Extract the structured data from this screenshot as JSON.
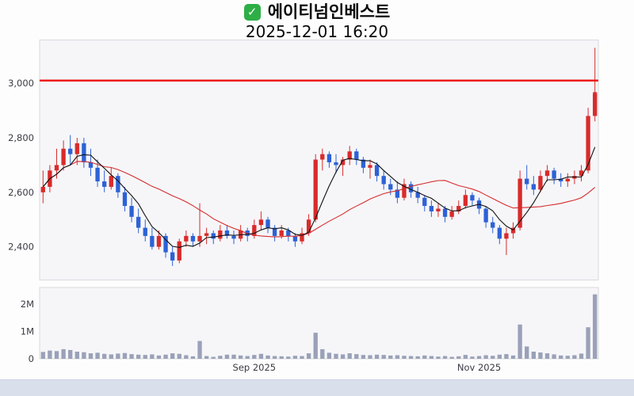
{
  "header": {
    "check_glyph": "✓",
    "title": "에이티넘인베스트",
    "datetime": "2025-12-01 16:20"
  },
  "chart_data": {
    "type": "candlestick",
    "title": "에이티넘인베스트",
    "subtitle": "2025-12-01 16:20",
    "price_axis": {
      "ticks": [
        2400,
        2600,
        2800,
        3000
      ],
      "labels": [
        "2,400",
        "2,600",
        "2,800",
        "3,000"
      ],
      "range": [
        2280,
        3160
      ]
    },
    "volume_axis": {
      "ticks": [
        0,
        1000000,
        2000000
      ],
      "labels": [
        "0",
        "1M",
        "2M"
      ],
      "range": [
        0,
        2600000
      ]
    },
    "x_axis": {
      "labels": [
        {
          "text": "Sep 2025",
          "index": 31
        },
        {
          "text": "Nov 2025",
          "index": 64
        }
      ]
    },
    "hline": {
      "value": 3010,
      "color": "#ee1111"
    },
    "ma_fast": {
      "window": 5,
      "name": "MA5"
    },
    "ma_slow": {
      "window": 20,
      "name": "MA20"
    },
    "colors": {
      "up": "#d92b2b",
      "down": "#2d62d6",
      "ma_fast": "#111111",
      "ma_slow": "#d62c2c",
      "volume": "#9aa1b8",
      "panel_bg": "#f6f6f9",
      "panel_border": "#d9d9e0"
    },
    "candle_format": [
      "open",
      "high",
      "low",
      "close",
      "volume"
    ],
    "candles": [
      [
        2600,
        2680,
        2560,
        2620,
        250000
      ],
      [
        2620,
        2700,
        2600,
        2680,
        300000
      ],
      [
        2680,
        2760,
        2650,
        2700,
        280000
      ],
      [
        2700,
        2790,
        2680,
        2760,
        350000
      ],
      [
        2760,
        2810,
        2700,
        2740,
        320000
      ],
      [
        2740,
        2800,
        2700,
        2780,
        260000
      ],
      [
        2780,
        2800,
        2690,
        2710,
        240000
      ],
      [
        2710,
        2760,
        2660,
        2690,
        200000
      ],
      [
        2690,
        2720,
        2620,
        2640,
        220000
      ],
      [
        2640,
        2680,
        2600,
        2620,
        180000
      ],
      [
        2620,
        2690,
        2610,
        2660,
        160000
      ],
      [
        2660,
        2670,
        2580,
        2600,
        190000
      ],
      [
        2600,
        2620,
        2530,
        2550,
        210000
      ],
      [
        2550,
        2580,
        2490,
        2510,
        170000
      ],
      [
        2510,
        2540,
        2450,
        2470,
        150000
      ],
      [
        2470,
        2500,
        2420,
        2440,
        140000
      ],
      [
        2440,
        2470,
        2390,
        2400,
        160000
      ],
      [
        2400,
        2460,
        2390,
        2440,
        120000
      ],
      [
        2440,
        2450,
        2360,
        2380,
        150000
      ],
      [
        2380,
        2400,
        2330,
        2350,
        200000
      ],
      [
        2350,
        2430,
        2340,
        2420,
        180000
      ],
      [
        2420,
        2460,
        2400,
        2440,
        130000
      ],
      [
        2440,
        2450,
        2400,
        2420,
        90000
      ],
      [
        2420,
        2560,
        2400,
        2440,
        650000
      ],
      [
        2440,
        2470,
        2410,
        2450,
        100000
      ],
      [
        2450,
        2460,
        2410,
        2430,
        70000
      ],
      [
        2430,
        2480,
        2420,
        2460,
        110000
      ],
      [
        2460,
        2480,
        2430,
        2440,
        150000
      ],
      [
        2440,
        2460,
        2410,
        2430,
        150000
      ],
      [
        2430,
        2480,
        2420,
        2460,
        120000
      ],
      [
        2460,
        2470,
        2420,
        2440,
        100000
      ],
      [
        2440,
        2500,
        2430,
        2480,
        140000
      ],
      [
        2480,
        2530,
        2460,
        2500,
        180000
      ],
      [
        2500,
        2510,
        2450,
        2470,
        120000
      ],
      [
        2470,
        2480,
        2420,
        2440,
        100000
      ],
      [
        2440,
        2480,
        2430,
        2460,
        90000
      ],
      [
        2460,
        2470,
        2420,
        2440,
        80000
      ],
      [
        2440,
        2450,
        2400,
        2420,
        110000
      ],
      [
        2420,
        2470,
        2410,
        2450,
        100000
      ],
      [
        2450,
        2520,
        2440,
        2500,
        200000
      ],
      [
        2500,
        2740,
        2490,
        2720,
        950000
      ],
      [
        2720,
        2760,
        2680,
        2740,
        350000
      ],
      [
        2740,
        2750,
        2690,
        2710,
        220000
      ],
      [
        2710,
        2740,
        2670,
        2700,
        180000
      ],
      [
        2700,
        2730,
        2660,
        2720,
        160000
      ],
      [
        2720,
        2770,
        2700,
        2750,
        200000
      ],
      [
        2750,
        2760,
        2700,
        2720,
        170000
      ],
      [
        2720,
        2730,
        2670,
        2690,
        140000
      ],
      [
        2690,
        2720,
        2650,
        2700,
        130000
      ],
      [
        2700,
        2710,
        2640,
        2660,
        150000
      ],
      [
        2660,
        2680,
        2610,
        2630,
        140000
      ],
      [
        2630,
        2650,
        2590,
        2610,
        120000
      ],
      [
        2610,
        2640,
        2560,
        2580,
        130000
      ],
      [
        2580,
        2650,
        2570,
        2630,
        110000
      ],
      [
        2630,
        2640,
        2580,
        2600,
        100000
      ],
      [
        2600,
        2620,
        2560,
        2580,
        90000
      ],
      [
        2580,
        2590,
        2530,
        2550,
        120000
      ],
      [
        2550,
        2570,
        2510,
        2530,
        100000
      ],
      [
        2530,
        2560,
        2510,
        2540,
        80000
      ],
      [
        2540,
        2550,
        2490,
        2510,
        100000
      ],
      [
        2510,
        2550,
        2500,
        2530,
        70000
      ],
      [
        2530,
        2570,
        2520,
        2550,
        90000
      ],
      [
        2550,
        2610,
        2540,
        2590,
        140000
      ],
      [
        2590,
        2600,
        2550,
        2570,
        80000
      ],
      [
        2570,
        2580,
        2520,
        2540,
        100000
      ],
      [
        2540,
        2550,
        2470,
        2490,
        130000
      ],
      [
        2490,
        2510,
        2450,
        2470,
        110000
      ],
      [
        2470,
        2480,
        2410,
        2430,
        150000
      ],
      [
        2430,
        2470,
        2370,
        2450,
        170000
      ],
      [
        2450,
        2490,
        2430,
        2470,
        120000
      ],
      [
        2470,
        2680,
        2460,
        2650,
        1250000
      ],
      [
        2650,
        2700,
        2610,
        2630,
        450000
      ],
      [
        2630,
        2660,
        2590,
        2610,
        260000
      ],
      [
        2610,
        2680,
        2600,
        2660,
        230000
      ],
      [
        2660,
        2700,
        2640,
        2680,
        200000
      ],
      [
        2680,
        2690,
        2630,
        2650,
        160000
      ],
      [
        2650,
        2670,
        2620,
        2640,
        120000
      ],
      [
        2640,
        2670,
        2620,
        2650,
        110000
      ],
      [
        2650,
        2680,
        2630,
        2660,
        130000
      ],
      [
        2660,
        2700,
        2640,
        2680,
        190000
      ],
      [
        2680,
        2910,
        2670,
        2880,
        1150000
      ],
      [
        2880,
        3130,
        2860,
        2960,
        2350000
      ]
    ]
  }
}
